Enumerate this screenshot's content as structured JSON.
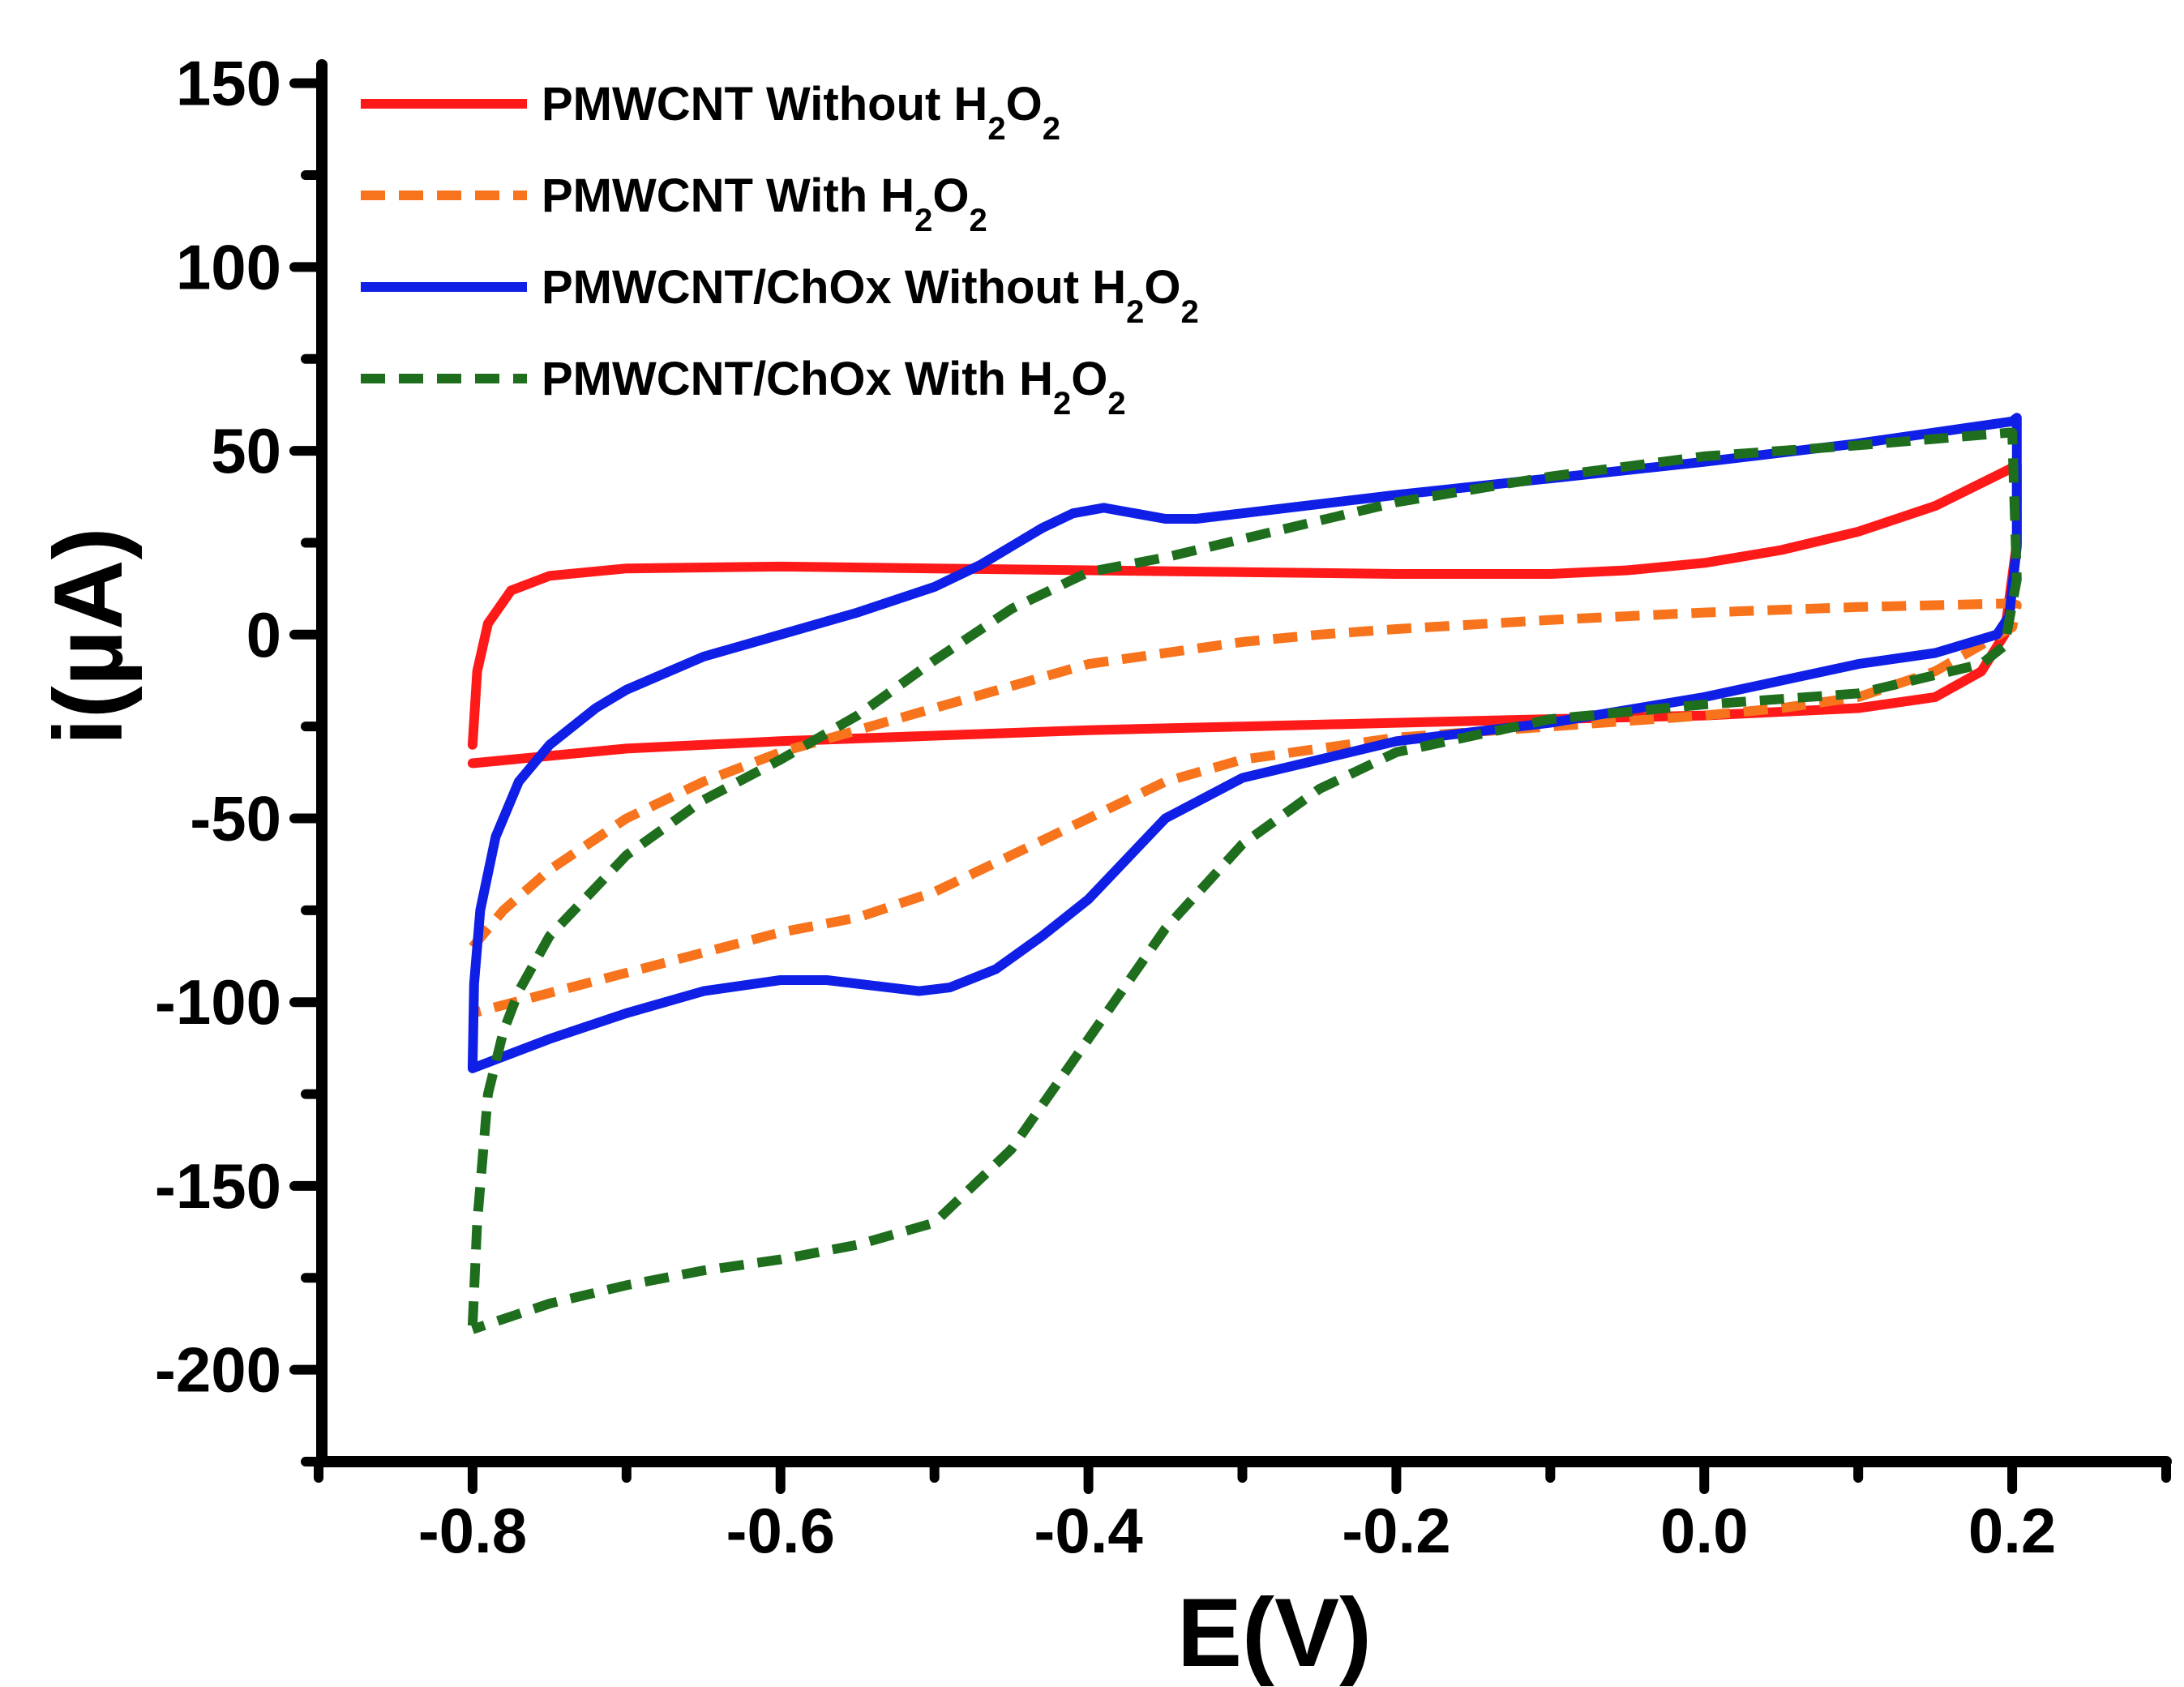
{
  "chart_data": {
    "type": "line",
    "title": "",
    "xlabel": "E(V)",
    "ylabel": "i(µA)",
    "xlim": [
      -0.9,
      0.3
    ],
    "ylim": [
      -225,
      155
    ],
    "x_ticks": [
      -0.8,
      -0.6,
      -0.4,
      -0.2,
      0.0,
      0.2
    ],
    "x_tick_labels": [
      "-0.8",
      "-0.6",
      "-0.4",
      "-0.2",
      "0.0",
      "0.2"
    ],
    "y_ticks": [
      150,
      100,
      50,
      0,
      -50,
      -100,
      -150,
      -200
    ],
    "y_tick_labels": [
      "150",
      "100",
      "50",
      "0",
      "-50",
      "-100",
      "-150",
      "-200"
    ],
    "legend_position": "top-left",
    "series": [
      {
        "name": "PMWCNT Without H2O2",
        "legend_main": "PMWCNT Without H",
        "legend_sub1": "2",
        "legend_mid": "O",
        "legend_sub2": "2",
        "color": "#ff1a1a",
        "style": "solid",
        "x": [
          -0.8,
          -0.797,
          -0.79,
          -0.775,
          -0.75,
          -0.7,
          -0.6,
          -0.5,
          -0.4,
          -0.3,
          -0.2,
          -0.1,
          -0.05,
          0.0,
          0.05,
          0.1,
          0.15,
          0.203,
          0.203,
          0.195,
          0.18,
          0.15,
          0.1,
          0.05,
          0.0,
          -0.1,
          -0.2,
          -0.3,
          -0.4,
          -0.5,
          -0.6,
          -0.7,
          -0.8
        ],
        "y": [
          -30,
          -10,
          3,
          12,
          16,
          18,
          18.5,
          18,
          17.5,
          17,
          16.5,
          16.5,
          17.5,
          19.5,
          23,
          28,
          35,
          46,
          25,
          0,
          -10,
          -17,
          -20,
          -21,
          -22,
          -23,
          -24,
          -25,
          -26,
          -27.5,
          -29,
          -31,
          -35
        ]
      },
      {
        "name": "PMWCNT With H2O2",
        "legend_main": "PMWCNT With H",
        "legend_sub1": "2",
        "legend_mid": "O",
        "legend_sub2": "2",
        "color": "#f7731c",
        "style": "dash",
        "x": [
          -0.8,
          -0.78,
          -0.75,
          -0.7,
          -0.65,
          -0.6,
          -0.55,
          -0.5,
          -0.45,
          -0.4,
          -0.35,
          -0.3,
          -0.25,
          -0.2,
          -0.1,
          0.0,
          0.1,
          0.2,
          0.203,
          0.2,
          0.15,
          0.1,
          0.05,
          0.0,
          -0.1,
          -0.2,
          -0.3,
          -0.35,
          -0.4,
          -0.45,
          -0.5,
          -0.55,
          -0.6,
          -0.7,
          -0.8
        ],
        "y": [
          -85,
          -75,
          -64,
          -50,
          -40,
          -32,
          -26,
          -20,
          -14,
          -8,
          -5,
          -2,
          0,
          1.5,
          4,
          6,
          7.5,
          8.5,
          8,
          2,
          -10,
          -17,
          -20,
          -22,
          -25,
          -28,
          -34,
          -40,
          -50,
          -60,
          -70,
          -77,
          -81,
          -92,
          -103
        ]
      },
      {
        "name": "PMWCNT/ChOx Without H2O2",
        "legend_main": "PMWCNT/ChOx Without H",
        "legend_sub1": "2",
        "legend_mid": "O",
        "legend_sub2": "2",
        "color": "#0f1fe6",
        "style": "solid",
        "x": [
          -0.8,
          -0.799,
          -0.795,
          -0.785,
          -0.77,
          -0.75,
          -0.72,
          -0.7,
          -0.65,
          -0.6,
          -0.55,
          -0.5,
          -0.47,
          -0.45,
          -0.43,
          -0.41,
          -0.39,
          -0.37,
          -0.35,
          -0.33,
          -0.3,
          -0.25,
          -0.2,
          -0.1,
          0.0,
          0.1,
          0.15,
          0.2,
          0.203,
          0.203,
          0.198,
          0.19,
          0.15,
          0.1,
          0.0,
          -0.1,
          -0.2,
          -0.25,
          -0.3,
          -0.35,
          -0.4,
          -0.43,
          -0.46,
          -0.49,
          -0.51,
          -0.53,
          -0.57,
          -0.6,
          -0.65,
          -0.7,
          -0.75,
          -0.8
        ],
        "y": [
          -118,
          -95,
          -75,
          -55,
          -40,
          -30,
          -20,
          -15,
          -6,
          0,
          6,
          13,
          19,
          24,
          29,
          33,
          34.5,
          33,
          31.5,
          31.5,
          33,
          35.5,
          38,
          42.5,
          47,
          52,
          55,
          58,
          59,
          24,
          5,
          0,
          -5,
          -8,
          -17,
          -24,
          -29,
          -34,
          -39,
          -50,
          -72,
          -82,
          -91,
          -96,
          -97,
          -96,
          -94,
          -94,
          -97,
          -103,
          -110,
          -118
        ]
      },
      {
        "name": "PMWCNT/ChOx With H2O2",
        "legend_main": "PMWCNT/ChOx With H",
        "legend_sub1": "2",
        "legend_mid": "O",
        "legend_sub2": "2",
        "color": "#1e6e1e",
        "style": "dash",
        "x": [
          -0.8,
          -0.797,
          -0.79,
          -0.78,
          -0.77,
          -0.75,
          -0.7,
          -0.65,
          -0.6,
          -0.55,
          -0.5,
          -0.45,
          -0.4,
          -0.35,
          -0.3,
          -0.25,
          -0.2,
          -0.1,
          0.0,
          0.1,
          0.2,
          0.203,
          0.195,
          0.18,
          0.1,
          0.0,
          -0.1,
          -0.2,
          -0.25,
          -0.3,
          -0.35,
          -0.4,
          -0.45,
          -0.5,
          -0.55,
          -0.6,
          -0.65,
          -0.7,
          -0.75,
          -0.8
        ],
        "y": [
          -188,
          -160,
          -125,
          -108,
          -97,
          -82,
          -60,
          -45,
          -34,
          -22,
          -7,
          7,
          17,
          21,
          26,
          31,
          36,
          43,
          48.5,
          51.5,
          55,
          15,
          -3,
          -8,
          -16,
          -19,
          -23,
          -32,
          -42,
          -57,
          -80,
          -110,
          -140,
          -160,
          -166,
          -170,
          -173,
          -177,
          -182,
          -189
        ]
      }
    ]
  }
}
